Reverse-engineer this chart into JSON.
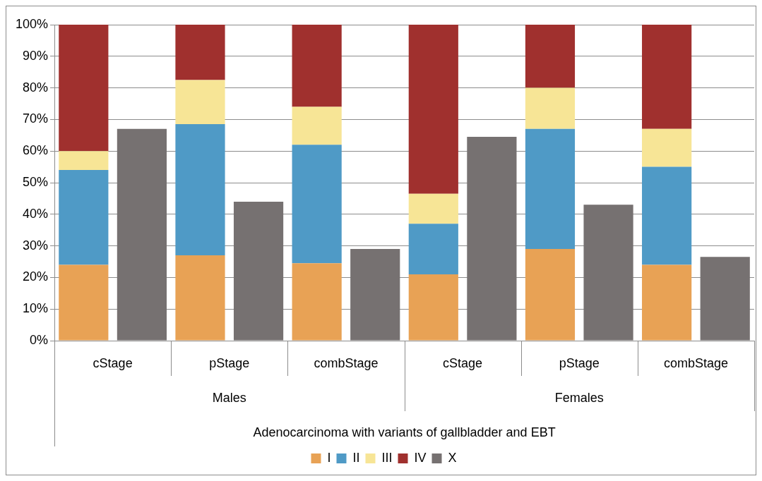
{
  "chart_data": {
    "type": "bar",
    "stacked": true,
    "xlabel": "Adenocarcinoma with variants of gallbladder and EBT",
    "categories": [
      "cStage",
      null,
      "pStage",
      null,
      "combStage",
      null,
      "cStage",
      null,
      "pStage",
      null,
      "combStage",
      null
    ],
    "annotations": [
      "Males",
      "Females"
    ],
    "series": [
      {
        "name": "I",
        "color": "#e8a255",
        "values": [
          24,
          null,
          27,
          null,
          24.5,
          null,
          21,
          null,
          29,
          null,
          24,
          null
        ]
      },
      {
        "name": "II",
        "color": "#4f9ac6",
        "values": [
          30,
          null,
          41.5,
          null,
          37.5,
          null,
          16,
          null,
          38,
          null,
          31,
          null
        ]
      },
      {
        "name": "III",
        "color": "#f7e596",
        "values": [
          6,
          null,
          14,
          null,
          12,
          null,
          9.5,
          null,
          13,
          null,
          12,
          null
        ]
      },
      {
        "name": "IV",
        "color": "#a0302e",
        "values": [
          40,
          null,
          17.5,
          null,
          26,
          null,
          53.5,
          null,
          20,
          null,
          33,
          null
        ]
      },
      {
        "name": "X",
        "color": "#767171",
        "values": [
          null,
          67,
          null,
          44,
          null,
          29,
          null,
          64.5,
          null,
          43,
          null,
          26.5
        ]
      }
    ],
    "ylim": [
      0,
      100
    ],
    "yticks": [
      {
        "value": 0,
        "label": "0%"
      },
      {
        "value": 10,
        "label": "10%"
      },
      {
        "value": 20,
        "label": "20%"
      },
      {
        "value": 30,
        "label": "30%"
      },
      {
        "value": 40,
        "label": "40%"
      },
      {
        "value": 50,
        "label": "50%"
      },
      {
        "value": 60,
        "label": "60%"
      },
      {
        "value": 70,
        "label": "70%"
      },
      {
        "value": 80,
        "label": "80%"
      },
      {
        "value": 90,
        "label": "90%"
      },
      {
        "value": 100,
        "label": "100%"
      }
    ],
    "grid": "y",
    "legend": "bottom"
  }
}
